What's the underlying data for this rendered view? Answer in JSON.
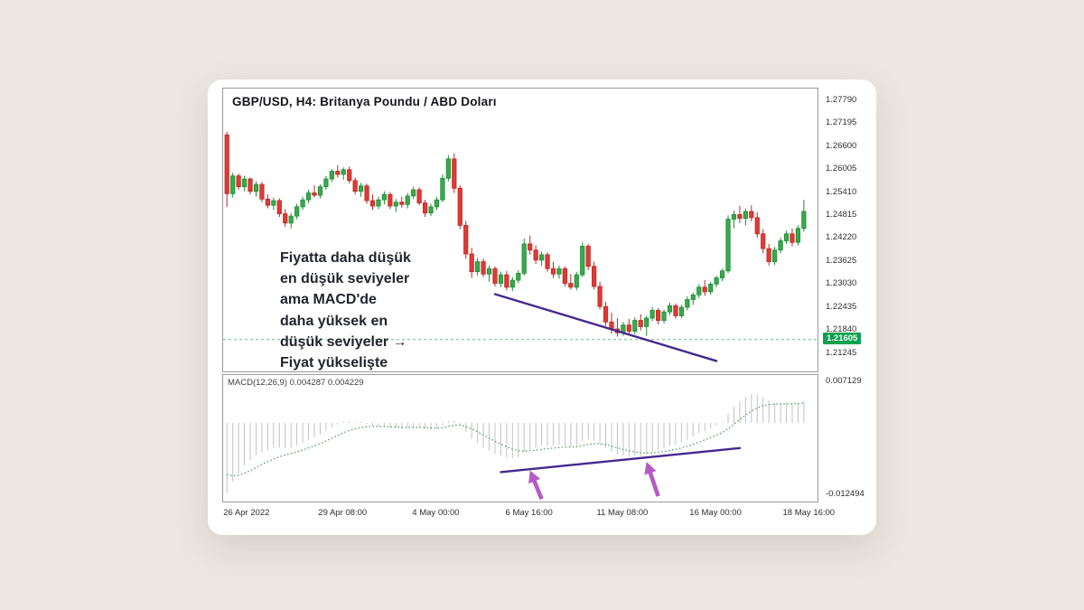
{
  "page": {
    "background": "#ece7e2",
    "card_color": "#ffffff"
  },
  "chart_data": {
    "type": "candlestick",
    "symbol": "GBP/USD",
    "timeframe": "H4",
    "title": "GBP/USD, H4: Britanya Poundu / ABD Doları",
    "annotation": "Fiyatta daha düşük\nen düşük seviyeler\nama MACD'de\ndaha yüksek en\ndüşük seviyeler →\nFiyat yükselişte",
    "slots": 102,
    "price_panel": {
      "ylim": [
        1.2078,
        1.281
      ],
      "yticks": [
        "1.27790",
        "1.27195",
        "1.26600",
        "1.26005",
        "1.25410",
        "1.24815",
        "1.24220",
        "1.23625",
        "1.23030",
        "1.22435",
        "1.21840",
        "1.21245"
      ],
      "bid": {
        "label": "1.21605",
        "value": 1.21605
      },
      "trendline": {
        "i1": 46,
        "p1": 1.2278,
        "i2": 84,
        "p2": 1.2105
      },
      "candles": [
        [
          1.269,
          1.2698,
          1.2504,
          1.2538
        ],
        [
          1.2538,
          1.2592,
          1.2528,
          1.2584
        ],
        [
          1.2584,
          1.259,
          1.2548,
          1.2556
        ],
        [
          1.2556,
          1.2584,
          1.2544,
          1.2576
        ],
        [
          1.2576,
          1.258,
          1.2536,
          1.2544
        ],
        [
          1.2544,
          1.257,
          1.253,
          1.2562
        ],
        [
          1.2562,
          1.2568,
          1.2516,
          1.2524
        ],
        [
          1.2524,
          1.2536,
          1.25,
          1.2508
        ],
        [
          1.2508,
          1.2528,
          1.2496,
          1.252
        ],
        [
          1.252,
          1.2526,
          1.2478,
          1.2486
        ],
        [
          1.2486,
          1.2498,
          1.2452,
          1.2462
        ],
        [
          1.2462,
          1.2488,
          1.2448,
          1.248
        ],
        [
          1.248,
          1.2512,
          1.2472,
          1.2504
        ],
        [
          1.2504,
          1.253,
          1.2496,
          1.2522
        ],
        [
          1.2522,
          1.2548,
          1.2514,
          1.254
        ],
        [
          1.254,
          1.256,
          1.2528,
          1.2534
        ],
        [
          1.2534,
          1.2562,
          1.2526,
          1.2556
        ],
        [
          1.2556,
          1.2584,
          1.2548,
          1.2576
        ],
        [
          1.2576,
          1.2602,
          1.2568,
          1.2596
        ],
        [
          1.2596,
          1.2612,
          1.258,
          1.2588
        ],
        [
          1.2588,
          1.2606,
          1.2574,
          1.26
        ],
        [
          1.26,
          1.2608,
          1.2564,
          1.2572
        ],
        [
          1.2572,
          1.258,
          1.2536,
          1.2544
        ],
        [
          1.2544,
          1.2566,
          1.253,
          1.2558
        ],
        [
          1.2558,
          1.2564,
          1.2512,
          1.252
        ],
        [
          1.252,
          1.2536,
          1.2496,
          1.2506
        ],
        [
          1.2506,
          1.253,
          1.2498,
          1.2522
        ],
        [
          1.2522,
          1.2544,
          1.251,
          1.2536
        ],
        [
          1.2536,
          1.2542,
          1.2498,
          1.2506
        ],
        [
          1.2506,
          1.2524,
          1.249,
          1.2516
        ],
        [
          1.2516,
          1.253,
          1.2502,
          1.251
        ],
        [
          1.251,
          1.254,
          1.25,
          1.2532
        ],
        [
          1.2532,
          1.2556,
          1.2524,
          1.2548
        ],
        [
          1.2548,
          1.2554,
          1.2508,
          1.2514
        ],
        [
          1.2514,
          1.2522,
          1.2478,
          1.2488
        ],
        [
          1.2488,
          1.2512,
          1.248,
          1.2504
        ],
        [
          1.2504,
          1.253,
          1.2496,
          1.2522
        ],
        [
          1.2522,
          1.2588,
          1.2516,
          1.2578
        ],
        [
          1.2578,
          1.2638,
          1.257,
          1.2628
        ],
        [
          1.2628,
          1.2642,
          1.254,
          1.2552
        ],
        [
          1.2552,
          1.256,
          1.2446,
          1.2456
        ],
        [
          1.2456,
          1.2468,
          1.237,
          1.2382
        ],
        [
          1.2382,
          1.2398,
          1.232,
          1.2336
        ],
        [
          1.2336,
          1.2372,
          1.2326,
          1.2362
        ],
        [
          1.2362,
          1.237,
          1.2322,
          1.233
        ],
        [
          1.233,
          1.2352,
          1.231,
          1.2344
        ],
        [
          1.2344,
          1.235,
          1.2298,
          1.2306
        ],
        [
          1.2306,
          1.2336,
          1.2296,
          1.2328
        ],
        [
          1.2328,
          1.2338,
          1.2288,
          1.2296
        ],
        [
          1.2296,
          1.2322,
          1.2286,
          1.2314
        ],
        [
          1.2314,
          1.234,
          1.2306,
          1.2332
        ],
        [
          1.2332,
          1.2422,
          1.2326,
          1.2408
        ],
        [
          1.2408,
          1.243,
          1.238,
          1.2392
        ],
        [
          1.2392,
          1.2404,
          1.2356,
          1.2366
        ],
        [
          1.2366,
          1.2388,
          1.2352,
          1.238
        ],
        [
          1.238,
          1.2386,
          1.2336,
          1.2344
        ],
        [
          1.2344,
          1.2362,
          1.232,
          1.233
        ],
        [
          1.233,
          1.2352,
          1.2318,
          1.2344
        ],
        [
          1.2344,
          1.235,
          1.2298,
          1.2306
        ],
        [
          1.2306,
          1.233,
          1.229,
          1.2296
        ],
        [
          1.2296,
          1.2336,
          1.2288,
          1.2328
        ],
        [
          1.2328,
          1.2412,
          1.2322,
          1.2402
        ],
        [
          1.2402,
          1.2408,
          1.234,
          1.235
        ],
        [
          1.235,
          1.2362,
          1.229,
          1.2298
        ],
        [
          1.2298,
          1.231,
          1.2238,
          1.2246
        ],
        [
          1.2246,
          1.2258,
          1.2196,
          1.2206
        ],
        [
          1.2206,
          1.223,
          1.2176,
          1.2188
        ],
        [
          1.2188,
          1.2216,
          1.2168,
          1.2178
        ],
        [
          1.2178,
          1.2206,
          1.217,
          1.2198
        ],
        [
          1.2198,
          1.2214,
          1.2172,
          1.2182
        ],
        [
          1.2182,
          1.2218,
          1.2174,
          1.221
        ],
        [
          1.221,
          1.2226,
          1.2184,
          1.2194
        ],
        [
          1.2194,
          1.2222,
          1.217,
          1.2216
        ],
        [
          1.2216,
          1.2244,
          1.2208,
          1.2236
        ],
        [
          1.2236,
          1.2242,
          1.22,
          1.221
        ],
        [
          1.221,
          1.2238,
          1.2202,
          1.2232
        ],
        [
          1.2232,
          1.2256,
          1.2224,
          1.2248
        ],
        [
          1.2248,
          1.2254,
          1.2214,
          1.2222
        ],
        [
          1.2222,
          1.225,
          1.2216,
          1.2244
        ],
        [
          1.2244,
          1.2272,
          1.2236,
          1.2264
        ],
        [
          1.2264,
          1.2282,
          1.225,
          1.2276
        ],
        [
          1.2276,
          1.2304,
          1.2268,
          1.2296
        ],
        [
          1.2296,
          1.2314,
          1.2274,
          1.2284
        ],
        [
          1.2284,
          1.231,
          1.2276,
          1.2304
        ],
        [
          1.2304,
          1.2326,
          1.2296,
          1.232
        ],
        [
          1.232,
          1.2344,
          1.2312,
          1.2338
        ],
        [
          1.2338,
          1.2482,
          1.2332,
          1.2472
        ],
        [
          1.2472,
          1.2494,
          1.2448,
          1.2484
        ],
        [
          1.2484,
          1.2506,
          1.2462,
          1.2474
        ],
        [
          1.2474,
          1.25,
          1.2456,
          1.2492
        ],
        [
          1.2492,
          1.2508,
          1.2466,
          1.2476
        ],
        [
          1.2476,
          1.249,
          1.2424,
          1.2434
        ],
        [
          1.2434,
          1.2446,
          1.2384,
          1.2396
        ],
        [
          1.2396,
          1.2408,
          1.2352,
          1.2362
        ],
        [
          1.2362,
          1.24,
          1.2354,
          1.2392
        ],
        [
          1.2392,
          1.2424,
          1.2384,
          1.2416
        ],
        [
          1.2416,
          1.2442,
          1.2408,
          1.2434
        ],
        [
          1.2434,
          1.2448,
          1.2402,
          1.2412
        ],
        [
          1.2412,
          1.2456,
          1.2404,
          1.2448
        ],
        [
          1.2448,
          1.2522,
          1.244,
          1.2492
        ]
      ]
    },
    "macd_panel": {
      "label": "MACD(12,26,9) 0.004287 0.004229",
      "values": {
        "macd": 0.004287,
        "signal": 0.004229
      },
      "params": {
        "fast": 12,
        "slow": 26,
        "signal": 9
      },
      "ylim": [
        -0.01375,
        0.00838
      ],
      "yticks": [
        "0.007129",
        "-0.012494"
      ],
      "seed": {
        "fast_offset": -0.01,
        "slow_offset": 0.004,
        "signal": -0.0082
      },
      "trendline": {
        "i1": 47,
        "v1": -0.0086,
        "i2": 88,
        "v2": -0.0044
      },
      "arrows": [
        {
          "tip_i": 52,
          "tip_v": -0.0083,
          "tail_i": 54,
          "tail_v": -0.0133
        },
        {
          "tip_i": 72,
          "tip_v": -0.0068,
          "tail_i": 74,
          "tail_v": -0.0128
        }
      ]
    },
    "xticks": [
      {
        "i": 0,
        "label": "26 Apr 2022",
        "align": "left"
      },
      {
        "i": 20,
        "label": "29 Apr 08:00"
      },
      {
        "i": 36,
        "label": "4 May 00:00"
      },
      {
        "i": 52,
        "label": "6 May 16:00"
      },
      {
        "i": 68,
        "label": "11 May 08:00"
      },
      {
        "i": 84,
        "label": "16 May 00:00"
      },
      {
        "i": 100,
        "label": "18 May 16:00"
      }
    ],
    "colors": {
      "up": "#3aa94c",
      "up_border": "#1f8a37",
      "down": "#e03a35",
      "down_border": "#ba2823",
      "histogram": "#c2c2c2",
      "signal_line": "#3f9d4f",
      "trendline": "#46288e",
      "arrow": "#b55bc6",
      "bid": "#0aa14d",
      "panel_border": "#9a9a9a",
      "axis_text": "#2e2e2e"
    }
  }
}
